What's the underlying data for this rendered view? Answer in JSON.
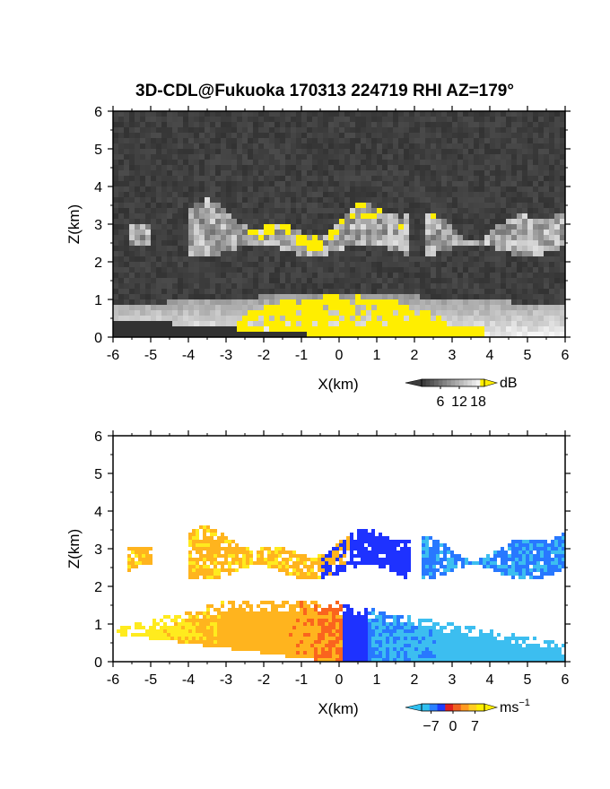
{
  "chart_data": [
    {
      "type": "heatmap",
      "panel": "reflectivity",
      "title": "3D-CDL@Fukuoka 170313 224719 RHI AZ=179°",
      "xlabel": "X(km)",
      "ylabel": "Z(km)",
      "xlim": [
        -6,
        6
      ],
      "ylim": [
        0,
        6
      ],
      "xticks": [
        "-6",
        "-5",
        "-4",
        "-3",
        "-2",
        "-1",
        "0",
        "1",
        "2",
        "3",
        "4",
        "5",
        "6"
      ],
      "yticks": [
        "0",
        "1",
        "2",
        "3",
        "4",
        "5",
        "6"
      ],
      "colorbar": {
        "unit": "dB",
        "ticks": [
          "6",
          "12",
          "18"
        ],
        "range": [
          0,
          20
        ]
      },
      "features": [
        {
          "name": "cloud layer",
          "x_range": [
            -5.6,
            6
          ],
          "z_range": [
            2.1,
            3.5
          ],
          "peak_dB": 20
        },
        {
          "name": "near-field returns",
          "x_range": [
            -6,
            4
          ],
          "z_range": [
            0,
            1.7
          ],
          "peak_dB": 20
        }
      ],
      "colors": {
        "background": "#2a2a2a",
        "low": "#303030",
        "high": "#f0f0f0",
        "saturated": "#ffee00"
      }
    },
    {
      "type": "heatmap",
      "panel": "doppler-velocity",
      "title": "",
      "xlabel": "X(km)",
      "ylabel": "Z(km)",
      "xlim": [
        -6,
        6
      ],
      "ylim": [
        0,
        6
      ],
      "xticks": [
        "-6",
        "-5",
        "-4",
        "-3",
        "-2",
        "-1",
        "0",
        "1",
        "2",
        "3",
        "4",
        "5",
        "6"
      ],
      "yticks": [
        "0",
        "1",
        "2",
        "3",
        "4",
        "5",
        "6"
      ],
      "colorbar": {
        "unit": "ms",
        "unit_exp": "−1",
        "ticks": [
          "−7",
          "0",
          "7"
        ],
        "range": [
          -10,
          10
        ]
      },
      "features": [
        {
          "name": "cloud layer",
          "x_range": [
            -5.6,
            6
          ],
          "z_range": [
            2.2,
            3.6
          ],
          "velocity_left": 6,
          "velocity_right": -5
        },
        {
          "name": "boundary layer",
          "x_range": [
            -6,
            6
          ],
          "z_range": [
            0,
            1.7
          ],
          "velocity_left": 7,
          "velocity_right": -6
        }
      ],
      "colors": {
        "negative": "#1e3cff",
        "zero": "#e02020",
        "positive": "#ffee00",
        "light_negative": "#30c0f0"
      }
    }
  ]
}
